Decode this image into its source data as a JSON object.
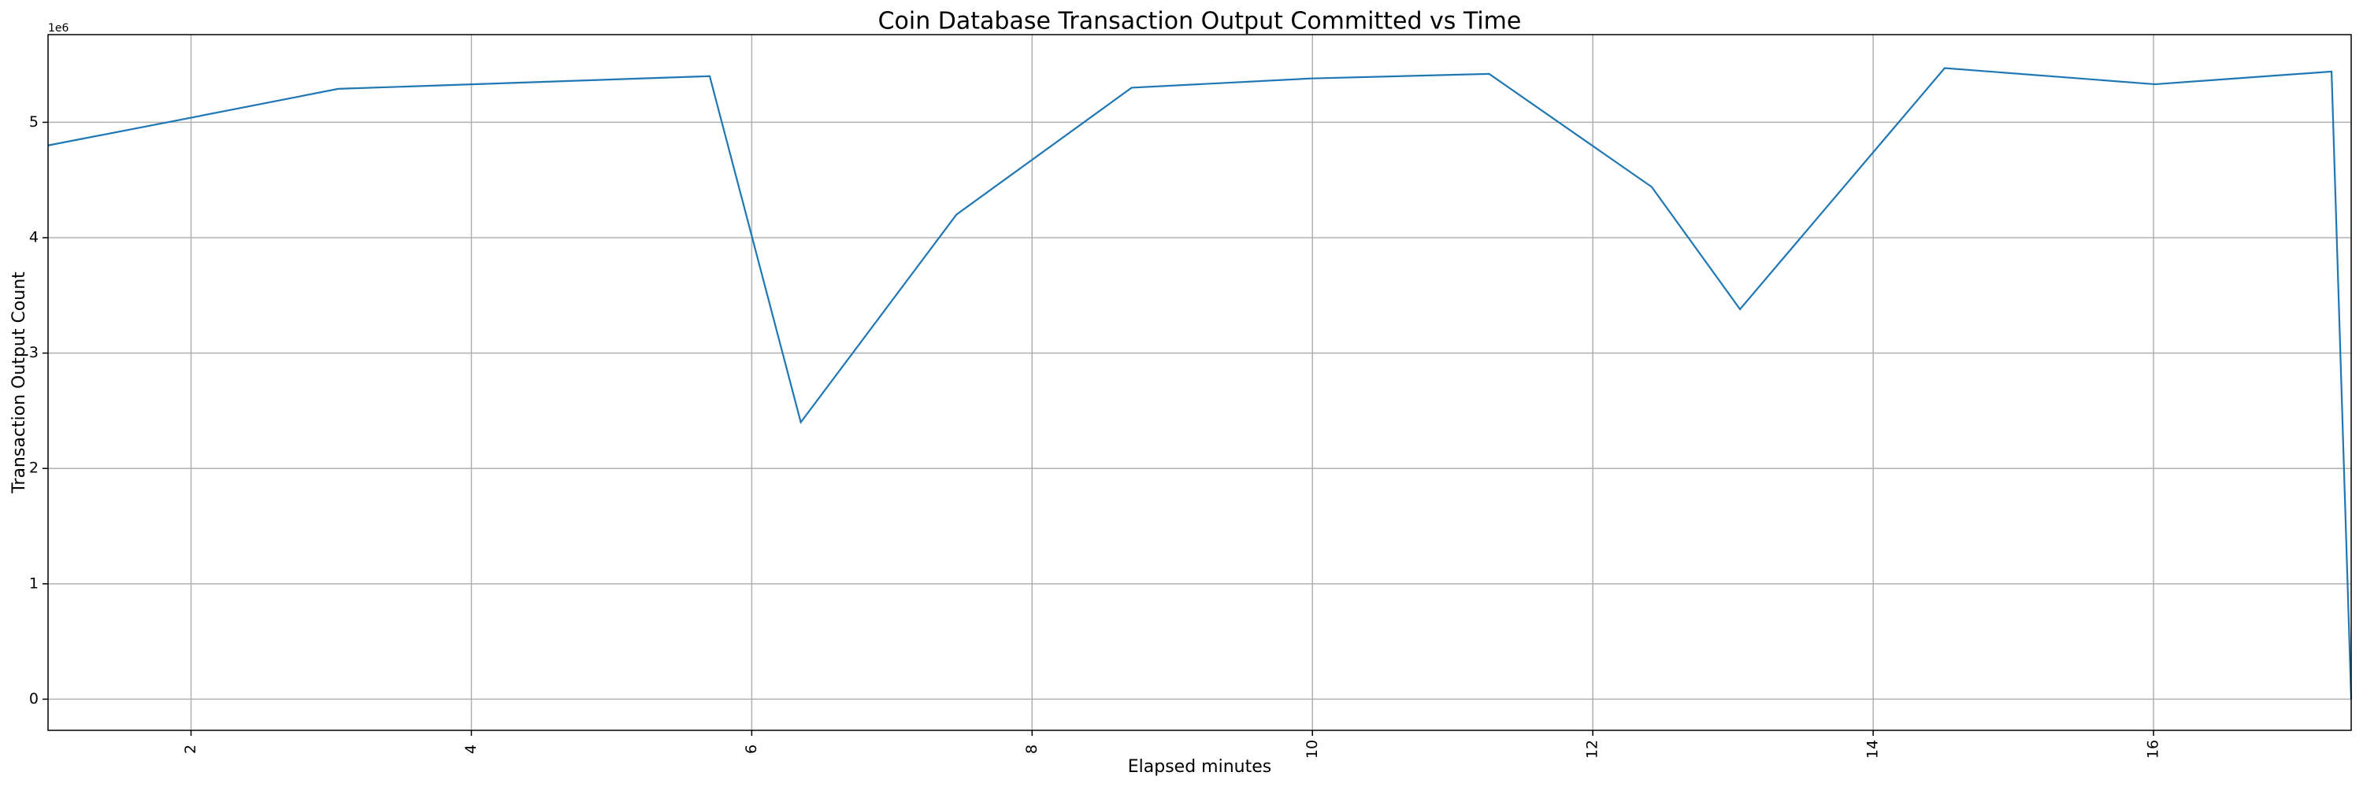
{
  "chart_data": {
    "type": "line",
    "title": "Coin Database Transaction Output Committed vs Time",
    "x_label": "Elapsed minutes",
    "y_label": "Transaction Output Count",
    "y_offset_label": "1e6",
    "x": [
      0.98,
      2.0,
      3.05,
      5.7,
      6.35,
      7.46,
      8.71,
      9.99,
      11.26,
      12.42,
      13.05,
      14.51,
      16.01,
      17.27,
      17.41
    ],
    "series": [
      {
        "name": "Transaction Output Count",
        "color": "#1f77b4",
        "values": [
          4800000,
          5040000,
          5290000,
          5400000,
          2400000,
          4200000,
          5300000,
          5380000,
          5420000,
          4440000,
          3380000,
          5470000,
          5330000,
          5440000,
          0
        ]
      }
    ],
    "xlim": [
      0.98,
      17.41
    ],
    "xticks": [
      2,
      4,
      6,
      8,
      10,
      12,
      14,
      16
    ],
    "ylim": [
      -270000,
      5760000
    ],
    "yticks": [
      0,
      {
        "value": 1000000,
        "label": "1"
      },
      {
        "value": 2000000,
        "label": "2"
      },
      {
        "value": 3000000,
        "label": "3"
      },
      {
        "value": 4000000,
        "label": "4"
      },
      {
        "value": 5000000,
        "label": "5"
      }
    ],
    "grid": true
  }
}
